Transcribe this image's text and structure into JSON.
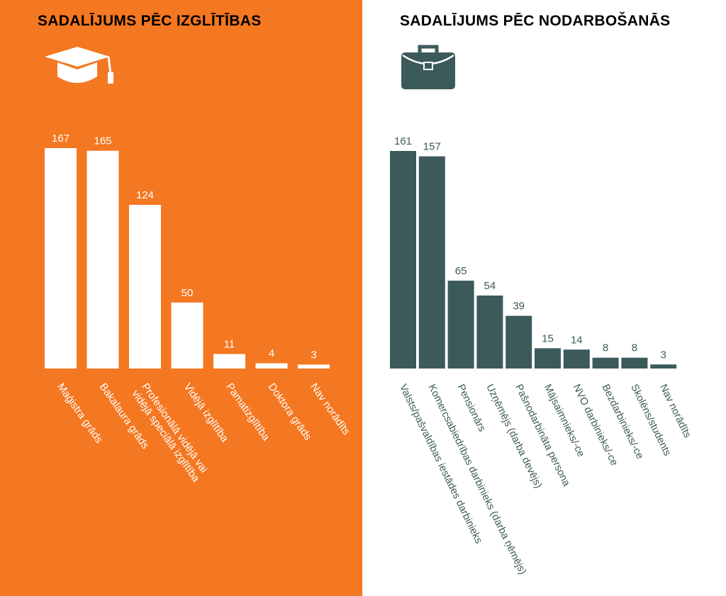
{
  "colors": {
    "orange": "#f47721",
    "teal": "#3d5a5a",
    "white": "#ffffff"
  },
  "left": {
    "title": "SADALĪJUMS PĒC IZGLĪTĪBAS",
    "icon": "graduation-cap-icon"
  },
  "right": {
    "title": "SADALĪJUMS PĒC NODARBOŠANĀS",
    "icon": "briefcase-icon"
  },
  "chart_data": [
    {
      "type": "bar",
      "title": "SADALĪJUMS PĒC IZGLĪTĪBAS",
      "categories": [
        [
          "Maģistra grāds"
        ],
        [
          "Bakalaura grāds"
        ],
        [
          "Profesionālā vidējā vai",
          "vidējā speciālā izglītība"
        ],
        [
          "Vidējā izglītība"
        ],
        [
          "Pamatizglītība"
        ],
        [
          "Doktora grāds"
        ],
        [
          "Nav norādīts"
        ]
      ],
      "values": [
        167,
        165,
        124,
        50,
        11,
        4,
        3
      ],
      "xlabel": "",
      "ylabel": "",
      "ylim": [
        0,
        167
      ],
      "grid": false,
      "bar_color": "#ffffff",
      "text_color": "#ffffff",
      "background": "#f47721"
    },
    {
      "type": "bar",
      "title": "SADALĪJUMS PĒC NODARBOŠANĀS",
      "categories": [
        [
          "Valsts/pašvaldības iestādes darbinieks"
        ],
        [
          "Komercsabiedrības darbinieks (darba ņēmējs)"
        ],
        [
          "Pensionārs"
        ],
        [
          "Uzņēmējs (darba devējs)"
        ],
        [
          "Pašnodarbināta persona"
        ],
        [
          "Mājsaimnieks/-ce"
        ],
        [
          "NVO darbinieks/-ce"
        ],
        [
          "Bezdarbinieks/-ce"
        ],
        [
          "Skolēns/students"
        ],
        [
          "Nav norādīts"
        ]
      ],
      "values": [
        161,
        157,
        65,
        54,
        39,
        15,
        14,
        8,
        8,
        3
      ],
      "xlabel": "",
      "ylabel": "",
      "ylim": [
        0,
        161
      ],
      "grid": false,
      "bar_color": "#3d5a5a",
      "text_color": "#3d5a5a",
      "background": "#ffffff"
    }
  ]
}
